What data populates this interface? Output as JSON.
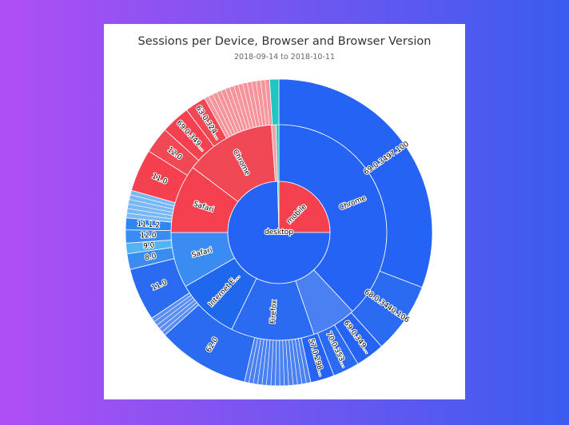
{
  "chart_data": {
    "type": "sunburst",
    "title": "Sessions per Device, Browser and Browser Version",
    "subtitle": "2018-09-14 to 2018-10-11",
    "colors": {
      "desktop": "#2563f5",
      "mobile": "#f5414f",
      "other": "#1ec8c0"
    },
    "rings": {
      "device": [
        {
          "name": "mobile",
          "start": 0,
          "end": 90,
          "color": "#f5414f"
        },
        {
          "name": "desktop",
          "start": 90,
          "end": 358.5,
          "color": "#2563f5"
        },
        {
          "name": "",
          "start": 358.5,
          "end": 360,
          "color": "#1ec8c0"
        }
      ],
      "browser": [
        {
          "name": "Chrome",
          "start": 0,
          "end": 137,
          "color": "#2563f5"
        },
        {
          "name": "",
          "start": 137,
          "end": 161,
          "color": "#4a80f2"
        },
        {
          "name": "Firefox",
          "start": 161,
          "end": 206,
          "color": "#2a6bf2"
        },
        {
          "name": "Internet E...",
          "start": 206,
          "end": 240,
          "color": "#1f68ee"
        },
        {
          "name": "Safari",
          "start": 240,
          "end": 270,
          "color": "#3a8cf2"
        },
        {
          "name": "Safari",
          "start": 270,
          "end": 307,
          "color": "#f5414f"
        },
        {
          "name": "Chrome",
          "start": 307,
          "end": 356,
          "color": "#f04855"
        },
        {
          "name": "",
          "start": 356,
          "end": 358.5,
          "color": "#f7a0a6"
        },
        {
          "name": "",
          "start": 358.5,
          "end": 360,
          "color": "#1ec8c0"
        }
      ],
      "version": [
        {
          "name": "69.0.3497.100",
          "start": 0,
          "end": 111,
          "color": "#2563f5"
        },
        {
          "name": "68.0.3440.106",
          "start": 111,
          "end": 138,
          "color": "#2a6bf2"
        },
        {
          "name": "69.0.349...",
          "start": 138,
          "end": 149,
          "color": "#2563f5"
        },
        {
          "name": "70.0.353...",
          "start": 149,
          "end": 159,
          "color": "#2a6bf2"
        },
        {
          "name": "57.0.298...",
          "start": 159,
          "end": 168,
          "color": "#2563f5"
        },
        {
          "name": "",
          "start": 168,
          "end": 193,
          "color": "#4a80f2"
        },
        {
          "name": "62.0",
          "start": 193,
          "end": 228,
          "color": "#2a6bf2"
        },
        {
          "name": "",
          "start": 228,
          "end": 236,
          "color": "#5a8ef5"
        },
        {
          "name": "11.0",
          "start": 236,
          "end": 256,
          "color": "#2a6bf2"
        },
        {
          "name": "8.0",
          "start": 256,
          "end": 262,
          "color": "#3a8cf2"
        },
        {
          "name": "9.0",
          "start": 262,
          "end": 266,
          "color": "#50b4f5"
        },
        {
          "name": "12.0",
          "start": 266,
          "end": 271,
          "color": "#3a8cf2"
        },
        {
          "name": "11.1.2",
          "start": 271,
          "end": 275.5,
          "color": "#2f86f0"
        },
        {
          "name": "",
          "start": 275.5,
          "end": 286,
          "color": "#7ab8f5"
        },
        {
          "name": "11.0",
          "start": 286,
          "end": 302,
          "color": "#f5414f"
        },
        {
          "name": "12.0",
          "start": 302,
          "end": 312,
          "color": "#f04855"
        },
        {
          "name": "69.0.349...",
          "start": 312,
          "end": 323,
          "color": "#f5414f"
        },
        {
          "name": "63.0.324...",
          "start": 323,
          "end": 331,
          "color": "#f04855"
        },
        {
          "name": "",
          "start": 331,
          "end": 356.5,
          "color": "#f7939b"
        },
        {
          "name": "",
          "start": 356.5,
          "end": 360,
          "color": "#1ec8c0"
        }
      ]
    }
  }
}
